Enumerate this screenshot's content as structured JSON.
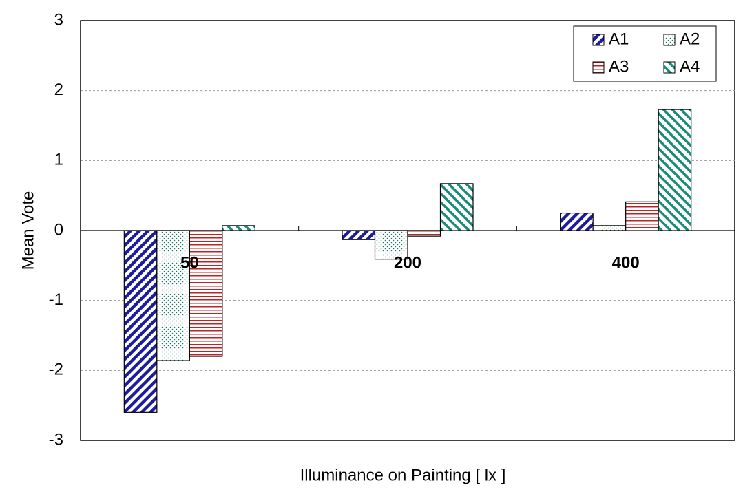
{
  "chart_data": {
    "type": "bar",
    "x_label": "Illuminance on Painting [ lx ]",
    "y_label": "Mean  Vote",
    "categories": [
      "50",
      "200",
      "400"
    ],
    "series": [
      {
        "name": "A1",
        "color": "#1c1c9c",
        "pattern": "back-diagonal",
        "values": [
          -2.6,
          -0.13,
          0.25
        ]
      },
      {
        "name": "A2",
        "color": "#1a7a6a",
        "pattern": "dots",
        "values": [
          -1.86,
          -0.41,
          0.07
        ]
      },
      {
        "name": "A3",
        "color": "#c02020",
        "pattern": "horizontal",
        "values": [
          -1.8,
          -0.08,
          0.41
        ]
      },
      {
        "name": "A4",
        "color": "#1a8a7a",
        "pattern": "diagonal",
        "values": [
          0.07,
          0.67,
          1.73
        ]
      }
    ],
    "ylim": [
      -3,
      3
    ],
    "yticks": [
      -3,
      -2,
      -1,
      0,
      1,
      2,
      3
    ],
    "grid": true,
    "legend": "top-right"
  }
}
